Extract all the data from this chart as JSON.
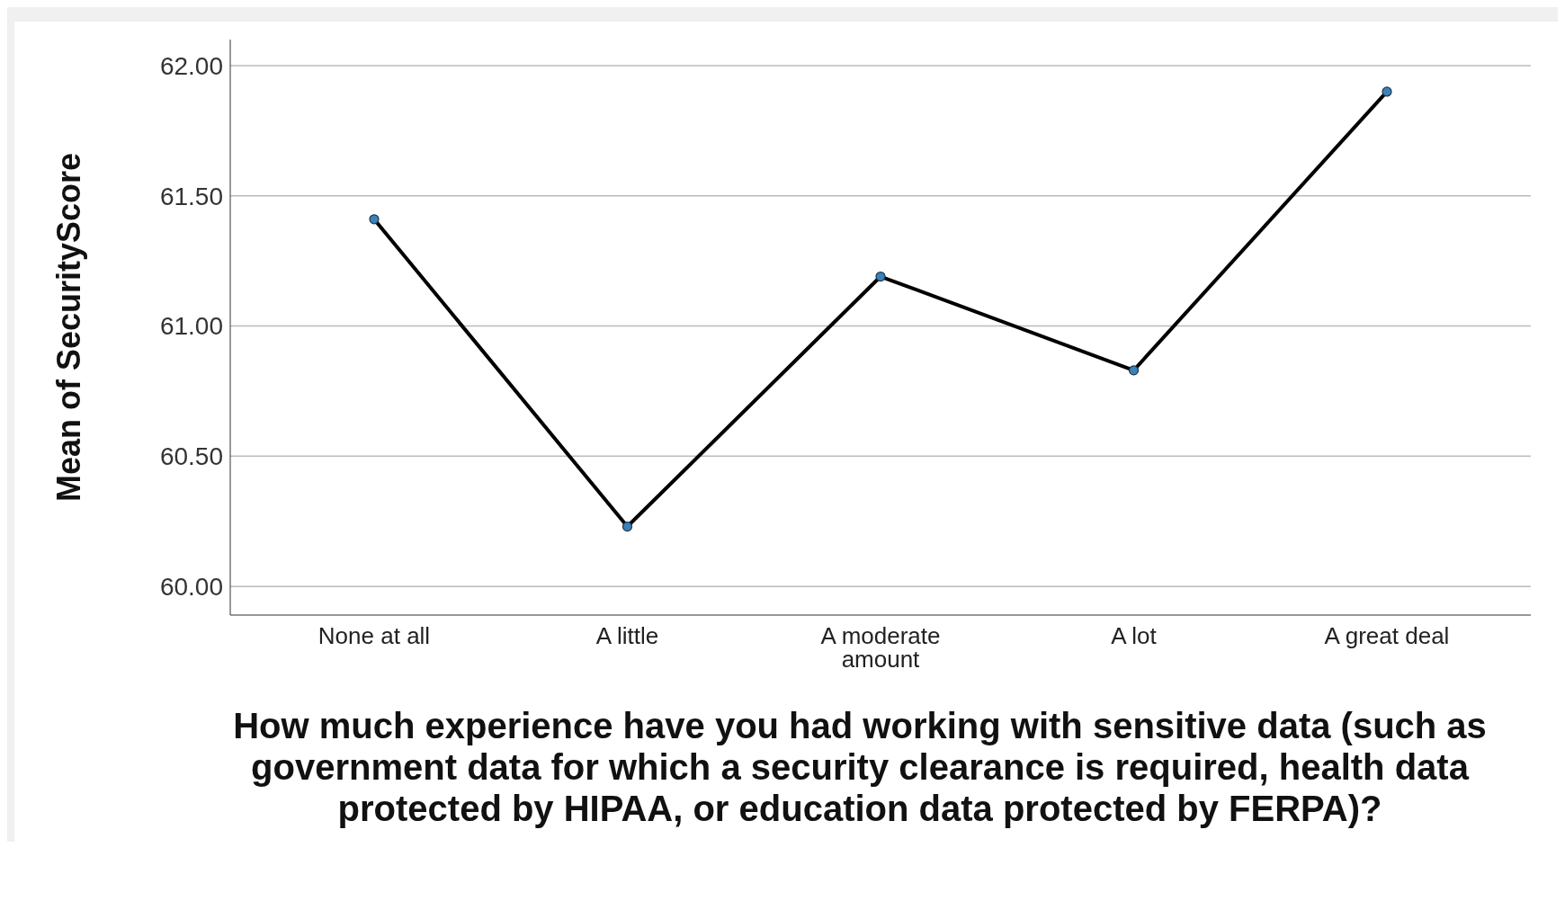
{
  "chart_data": {
    "type": "line",
    "ylabel": "Mean of SecurityScore",
    "xlabel": "How much experience have you had working with sensitive data (such as government data for which a security clearance is required, health data protected by HIPAA, or education data protected by FERPA)?",
    "categories": [
      "None at all",
      "A little",
      "A moderate amount",
      "A lot",
      "A great deal"
    ],
    "series": [
      {
        "color": "#000000",
        "values": [
          61.41,
          60.23,
          61.19,
          60.83,
          61.9
        ]
      }
    ],
    "ylim": [
      59.89,
      62.1
    ],
    "yticks": [
      {
        "value": 60,
        "label": "60.00"
      },
      {
        "value": 60.5,
        "label": "60.50"
      },
      {
        "value": 61,
        "label": "61.00"
      },
      {
        "value": 61.5,
        "label": "61.50"
      },
      {
        "value": 62,
        "label": "62.00"
      }
    ],
    "grid": "y",
    "legend": false,
    "marker": "circle",
    "line_style": "solid"
  }
}
